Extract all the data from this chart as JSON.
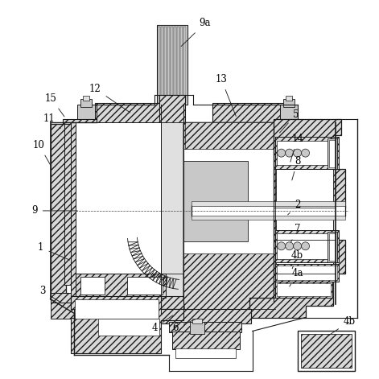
{
  "background_color": "#ffffff",
  "figure_size": [
    4.71,
    4.71
  ],
  "dpi": 100,
  "line_color": "#1a1a1a",
  "hatch_light": "#d8d8d8",
  "hatch_dark": "#b0b0b0",
  "white": "#ffffff",
  "gray1": "#c8c8c8",
  "gray2": "#e0e0e0",
  "labels": [
    [
      "9a",
      255,
      28,
      222,
      60
    ],
    [
      "12",
      118,
      110,
      165,
      142
    ],
    [
      "15",
      63,
      122,
      82,
      148
    ],
    [
      "11",
      60,
      147,
      78,
      162
    ],
    [
      "10",
      48,
      180,
      65,
      210
    ],
    [
      "9",
      42,
      262,
      100,
      262
    ],
    [
      "1",
      50,
      308,
      90,
      325
    ],
    [
      "3",
      52,
      362,
      78,
      378
    ],
    [
      "4",
      192,
      408,
      218,
      390
    ],
    [
      "6",
      218,
      408,
      248,
      395
    ],
    [
      "13",
      275,
      98,
      295,
      148
    ],
    [
      "5",
      368,
      142,
      345,
      168
    ],
    [
      "14",
      370,
      172,
      360,
      205
    ],
    [
      "8",
      370,
      200,
      362,
      228
    ],
    [
      "2",
      370,
      255,
      355,
      270
    ],
    [
      "7",
      370,
      285,
      360,
      305
    ],
    [
      "4b",
      370,
      318,
      362,
      338
    ],
    [
      "4a",
      370,
      340,
      358,
      360
    ],
    [
      "4b",
      435,
      400,
      405,
      420
    ]
  ]
}
